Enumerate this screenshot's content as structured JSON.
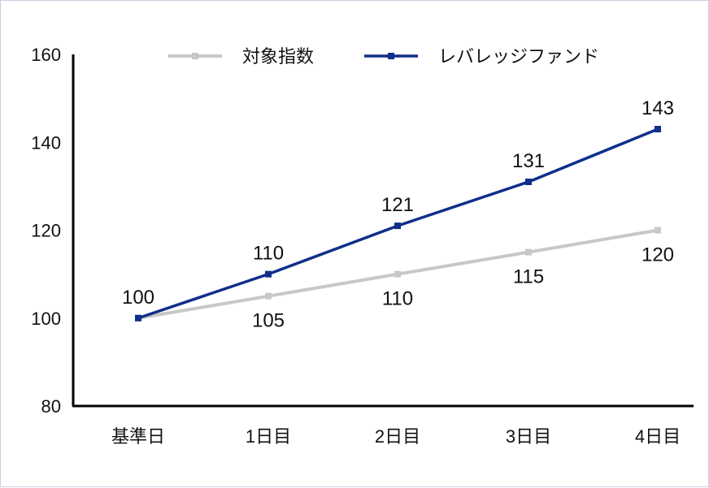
{
  "chart_data": {
    "type": "line",
    "title": "",
    "xlabel": "",
    "ylabel": "",
    "categories": [
      "基準日",
      "1日目",
      "2日目",
      "3日目",
      "4日目"
    ],
    "ylim": [
      80,
      160
    ],
    "yticks": [
      80,
      100,
      120,
      140,
      160
    ],
    "grid": false,
    "legend_position": "top-center",
    "series": [
      {
        "name": "対象指数",
        "color": "#c8c8c8",
        "values": [
          100,
          105,
          110,
          115,
          120
        ],
        "labels": [
          "",
          "105",
          "110",
          "115",
          "120"
        ]
      },
      {
        "name": "レバレッジファンド",
        "color": "#0f2f8a",
        "values": [
          100,
          110,
          121,
          131,
          143
        ],
        "labels": [
          "100",
          "110",
          "121",
          "131",
          "143"
        ]
      }
    ]
  }
}
